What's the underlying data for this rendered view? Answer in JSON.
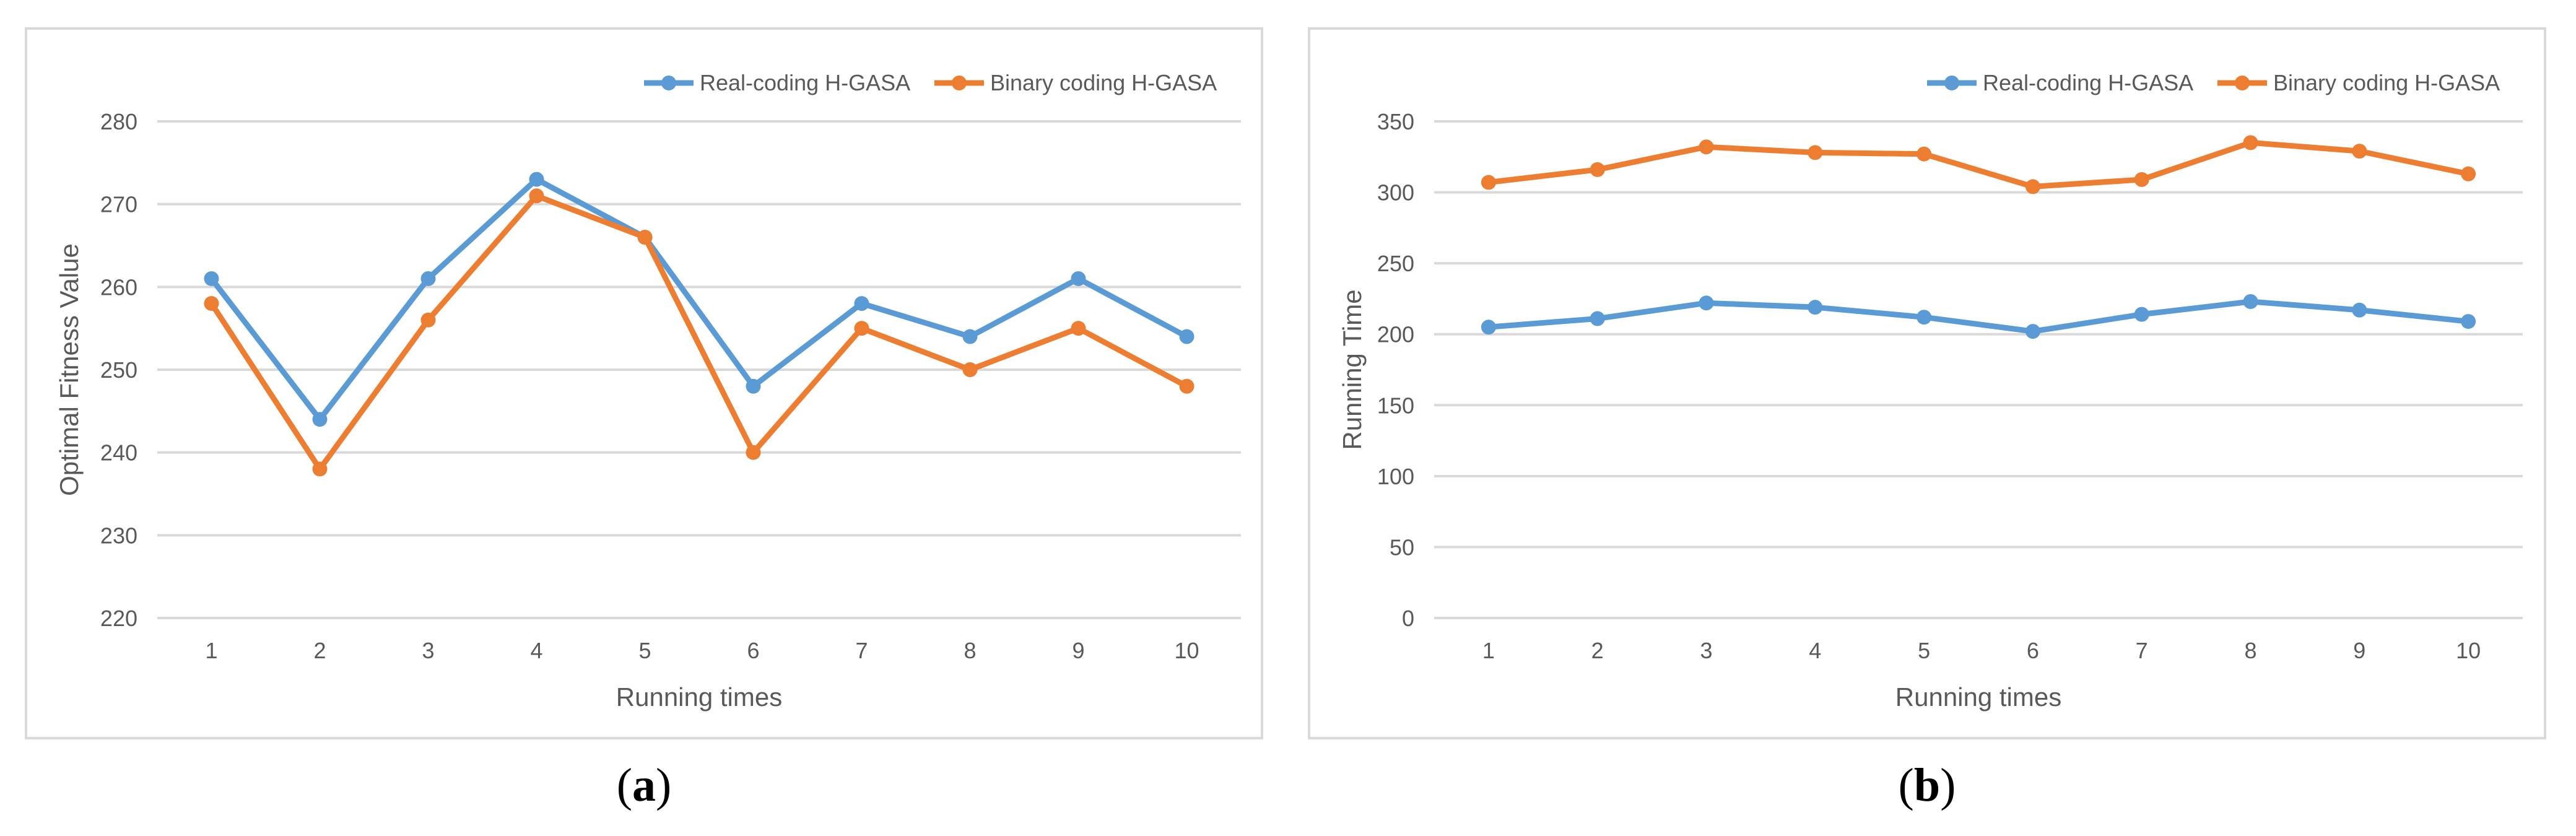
{
  "chart_data": [
    {
      "type": "line",
      "panel_label": "a",
      "title": "",
      "xlabel": "Running times",
      "ylabel": "Optimal Fitness Value",
      "categories": [
        "1",
        "2",
        "3",
        "4",
        "5",
        "6",
        "7",
        "8",
        "9",
        "10"
      ],
      "ylim": [
        220,
        280
      ],
      "yticks": [
        220,
        230,
        240,
        250,
        260,
        270,
        280
      ],
      "grid": true,
      "legend_position": "top-right",
      "series": [
        {
          "name": "Real-coding H-GASA",
          "color": "#5b9bd5",
          "values": [
            261,
            244,
            261,
            273,
            266,
            248,
            258,
            254,
            261,
            254
          ]
        },
        {
          "name": "Binary coding H-GASA",
          "color": "#ed7d31",
          "values": [
            258,
            238,
            256,
            271,
            266,
            240,
            255,
            250,
            255,
            248
          ]
        }
      ]
    },
    {
      "type": "line",
      "panel_label": "b",
      "title": "",
      "xlabel": "Running times",
      "ylabel": "Running Time",
      "categories": [
        "1",
        "2",
        "3",
        "4",
        "5",
        "6",
        "7",
        "8",
        "9",
        "10"
      ],
      "ylim": [
        0,
        350
      ],
      "yticks": [
        0,
        50,
        100,
        150,
        200,
        250,
        300,
        350
      ],
      "grid": true,
      "legend_position": "top-right",
      "series": [
        {
          "name": "Real-coding H-GASA",
          "color": "#5b9bd5",
          "values": [
            205,
            211,
            222,
            219,
            212,
            202,
            214,
            223,
            217,
            209
          ]
        },
        {
          "name": "Binary coding H-GASA",
          "color": "#ed7d31",
          "values": [
            307,
            316,
            332,
            328,
            327,
            304,
            309,
            335,
            329,
            313
          ]
        }
      ]
    }
  ]
}
